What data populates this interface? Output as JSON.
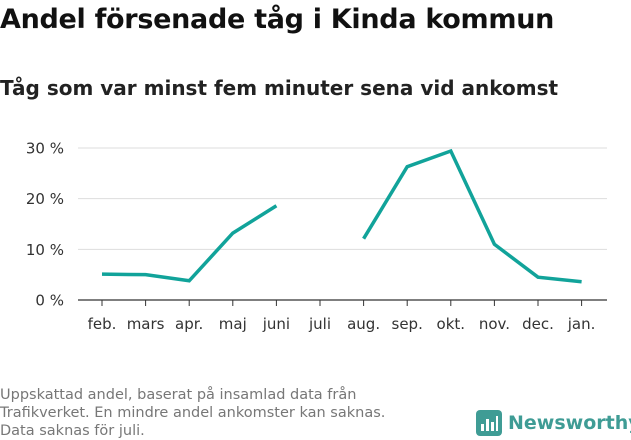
{
  "title": "Andel försenade tåg i Kinda kommun",
  "subtitle": "Tåg som var minst fem minuter sena vid ankomst",
  "footnote": [
    "Uppskattad andel, baserat på insamlad data från",
    "Trafikverket. En mindre andel ankomster kan saknas.",
    "Data saknas för juli."
  ],
  "brand": {
    "name": "Newsworthy",
    "logo_icon": "bar-chart-icon",
    "color": "#3f9c95"
  },
  "chart_data": {
    "type": "line",
    "categories": [
      "feb.",
      "mars",
      "apr.",
      "maj",
      "juni",
      "juli",
      "aug.",
      "sep.",
      "okt.",
      "nov.",
      "dec.",
      "jan."
    ],
    "series": [
      {
        "values": [
          5.1,
          5.0,
          3.8,
          13.2,
          18.6,
          null,
          12.1,
          26.3,
          29.4,
          11.0,
          4.5,
          3.6
        ],
        "color": "#11a39a"
      }
    ],
    "yticks": [
      {
        "value": 0,
        "label": "0 %"
      },
      {
        "value": 10,
        "label": "10 %"
      },
      {
        "value": 20,
        "label": "20 %"
      },
      {
        "value": 30,
        "label": "30 %"
      }
    ],
    "ylim": [
      0,
      30
    ],
    "grid": true,
    "legend": "none"
  }
}
